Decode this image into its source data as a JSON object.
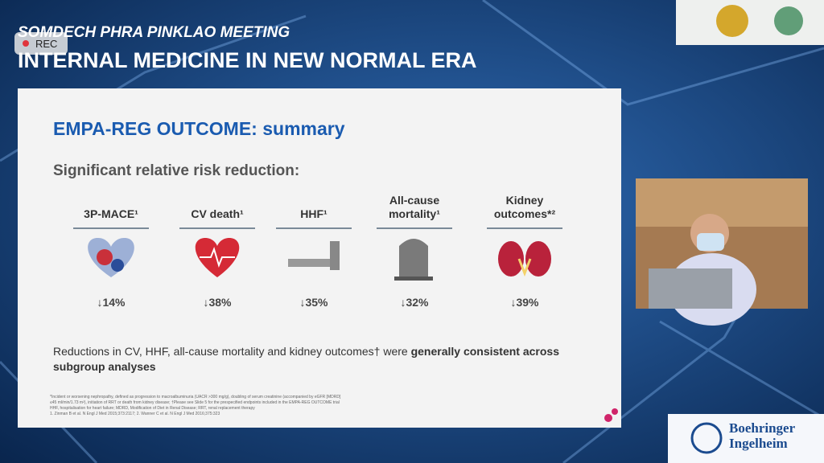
{
  "recording": {
    "label": "REC"
  },
  "header": {
    "subtitle": "SOMDECH PHRA PINKLAO MEETING",
    "title": "INTERNAL MEDICINE IN NEW NORMAL ERA"
  },
  "slide": {
    "title": "EMPA-REG OUTCOME: summary",
    "subtitle": "Significant relative risk reduction:",
    "outcomes": [
      {
        "label": "3P-MACE¹",
        "reduction": "↓14%"
      },
      {
        "label": "CV death¹",
        "reduction": "↓38%"
      },
      {
        "label": "HHF¹",
        "reduction": "↓35%"
      },
      {
        "label": "All-cause mortality¹",
        "reduction": "↓32%"
      },
      {
        "label": "Kidney outcomes*²",
        "reduction": "↓39%"
      }
    ],
    "note_plain": "Reductions in CV, HHF, all-cause mortality and kidney outcomes† were ",
    "note_bold": "generally consistent across subgroup analyses",
    "footnotes": [
      "*Incident or worsening nephropathy, defined as progression to macroalbuminuria (UACR >300 mg/g), doubling of serum creatinine (accompanied by eGFR [MDRD]",
      "≤45 ml/min/1.73 m²), initiation of RRT or death from kidney disease; †Please see Slide 5 for the prespecified endpoints included in the EMPA-REG OUTCOME trial",
      "HHF, hospitalisation for heart failure; MDRD, Modification of Diet in Renal Disease; RRT, renal replacement therapy",
      "1. Zinman B et al. N Engl J Med 2015;373:2117; 2. Wanner C et al. N Engl J Med 2016;375:323"
    ]
  },
  "sponsor": {
    "line1": "Boehringer",
    "line2": "Ingelheim"
  }
}
